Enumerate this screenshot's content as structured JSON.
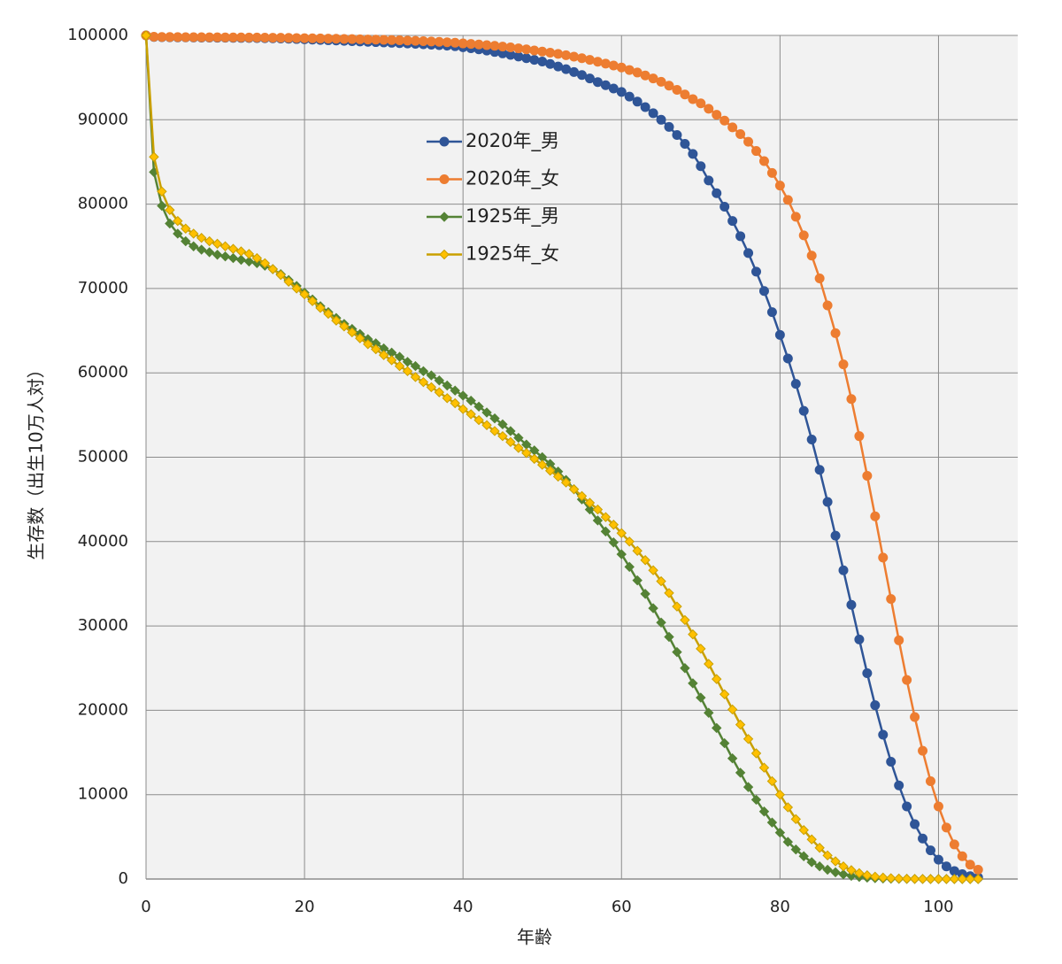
{
  "chart_data": {
    "type": "line",
    "x_label": "年齢",
    "y_label": "生存数（出生10万人対）",
    "x": [
      0,
      1,
      2,
      3,
      4,
      5,
      6,
      7,
      8,
      9,
      10,
      11,
      12,
      13,
      14,
      15,
      16,
      17,
      18,
      19,
      20,
      21,
      22,
      23,
      24,
      25,
      26,
      27,
      28,
      29,
      30,
      31,
      32,
      33,
      34,
      35,
      36,
      37,
      38,
      39,
      40,
      41,
      42,
      43,
      44,
      45,
      46,
      47,
      48,
      49,
      50,
      51,
      52,
      53,
      54,
      55,
      56,
      57,
      58,
      59,
      60,
      61,
      62,
      63,
      64,
      65,
      66,
      67,
      68,
      69,
      70,
      71,
      72,
      73,
      74,
      75,
      76,
      77,
      78,
      79,
      80,
      81,
      82,
      83,
      84,
      85,
      86,
      87,
      88,
      89,
      90,
      91,
      92,
      93,
      94,
      95,
      96,
      97,
      98,
      99,
      100,
      101,
      102,
      103,
      104,
      105
    ],
    "series": [
      {
        "name": "2020年_男",
        "color": "#2f5597",
        "marker": "circle",
        "values": [
          100000,
          99820,
          99795,
          99780,
          99770,
          99760,
          99750,
          99742,
          99735,
          99728,
          99721,
          99714,
          99706,
          99697,
          99686,
          99672,
          99654,
          99632,
          99605,
          99574,
          99540,
          99504,
          99467,
          99430,
          99393,
          99356,
          99319,
          99282,
          99245,
          99207,
          99168,
          99128,
          99087,
          99044,
          98999,
          98951,
          98900,
          98845,
          98786,
          98722,
          98600,
          98480,
          98350,
          98200,
          98040,
          97870,
          97690,
          97500,
          97300,
          97100,
          96900,
          96620,
          96320,
          96000,
          95660,
          95300,
          94900,
          94470,
          94100,
          93700,
          93300,
          92750,
          92150,
          91500,
          90780,
          90000,
          89150,
          88200,
          87150,
          85950,
          84500,
          82800,
          81300,
          79700,
          78000,
          76200,
          74200,
          72000,
          69700,
          67200,
          64500,
          61700,
          58700,
          55500,
          52100,
          48500,
          44700,
          40700,
          36600,
          32500,
          28400,
          24400,
          20600,
          17100,
          13900,
          11100,
          8600,
          6500,
          4800,
          3400,
          2300,
          1500,
          950,
          580,
          340,
          190
        ]
      },
      {
        "name": "2020年_女",
        "color": "#ed7d31",
        "marker": "circle",
        "values": [
          100000,
          99840,
          99820,
          99810,
          99800,
          99795,
          99790,
          99785,
          99780,
          99775,
          99770,
          99765,
          99760,
          99754,
          99747,
          99739,
          99730,
          99719,
          99706,
          99691,
          99675,
          99658,
          99640,
          99622,
          99603,
          99584,
          99564,
          99543,
          99521,
          99498,
          99474,
          99448,
          99420,
          99390,
          99357,
          99321,
          99282,
          99239,
          99191,
          99138,
          99050,
          98990,
          98920,
          98850,
          98770,
          98680,
          98580,
          98470,
          98350,
          98220,
          98080,
          97950,
          97810,
          97650,
          97480,
          97300,
          97100,
          96880,
          96660,
          96430,
          96200,
          95900,
          95600,
          95250,
          94900,
          94500,
          94050,
          93550,
          93000,
          92450,
          91950,
          91300,
          90600,
          89900,
          89100,
          88300,
          87400,
          86300,
          85100,
          83700,
          82200,
          80500,
          78500,
          76300,
          73900,
          71200,
          68000,
          64700,
          61000,
          56900,
          52500,
          47800,
          43000,
          38100,
          33200,
          28300,
          23600,
          19200,
          15200,
          11600,
          8600,
          6100,
          4100,
          2700,
          1700,
          1100
        ]
      },
      {
        "name": "1925年_男",
        "color": "#548235",
        "marker": "diamond",
        "values": [
          100000,
          83800,
          79800,
          77700,
          76500,
          75600,
          75000,
          74600,
          74300,
          74000,
          73800,
          73600,
          73400,
          73200,
          73000,
          72700,
          72300,
          71700,
          71000,
          70300,
          69500,
          68700,
          67900,
          67200,
          66500,
          65800,
          65200,
          64600,
          64000,
          63500,
          62900,
          62400,
          61900,
          61300,
          60800,
          60200,
          59700,
          59100,
          58500,
          57900,
          57300,
          56700,
          56000,
          55300,
          54600,
          53900,
          53100,
          52300,
          51500,
          50800,
          50000,
          49200,
          48300,
          47300,
          46200,
          45000,
          43800,
          42500,
          41200,
          39900,
          38500,
          37000,
          35400,
          33800,
          32100,
          30400,
          28700,
          26900,
          25000,
          23200,
          21500,
          19700,
          17900,
          16100,
          14300,
          12600,
          10900,
          9400,
          8000,
          6700,
          5500,
          4400,
          3500,
          2700,
          2000,
          1500,
          1100,
          800,
          550,
          380,
          250,
          160,
          100,
          60,
          35,
          20,
          12,
          7,
          4,
          2,
          1,
          1,
          0,
          0,
          0,
          0
        ]
      },
      {
        "name": "1925年_女",
        "color": "#c9a000",
        "marker": "diamond",
        "values": [
          100000,
          85600,
          81500,
          79300,
          78000,
          77100,
          76500,
          76000,
          75600,
          75300,
          75000,
          74700,
          74400,
          74100,
          73600,
          73000,
          72300,
          71600,
          70800,
          70000,
          69300,
          68500,
          67700,
          67000,
          66200,
          65500,
          64800,
          64100,
          63400,
          62800,
          62100,
          61500,
          60800,
          60200,
          59500,
          58900,
          58300,
          57700,
          57000,
          56400,
          55700,
          55100,
          54400,
          53800,
          53100,
          52500,
          51800,
          51100,
          50500,
          49800,
          49100,
          48400,
          47700,
          47000,
          46200,
          45400,
          44600,
          43800,
          42900,
          42000,
          41000,
          40000,
          38900,
          37800,
          36600,
          35300,
          33900,
          32300,
          30700,
          29000,
          27300,
          25500,
          23700,
          21900,
          20100,
          18300,
          16600,
          14900,
          13200,
          11600,
          10000,
          8500,
          7100,
          5800,
          4700,
          3700,
          2800,
          2100,
          1500,
          1050,
          700,
          450,
          280,
          170,
          100,
          55,
          30,
          15,
          8,
          4,
          2,
          1,
          0,
          0,
          0,
          0
        ]
      }
    ],
    "xlim": [
      0,
      110
    ],
    "xticks": [
      0,
      20,
      40,
      60,
      80,
      100
    ],
    "ylim": [
      0,
      100000
    ],
    "yticks": [
      0,
      10000,
      20000,
      30000,
      40000,
      50000,
      60000,
      70000,
      80000,
      90000,
      100000
    ],
    "grid": true
  }
}
